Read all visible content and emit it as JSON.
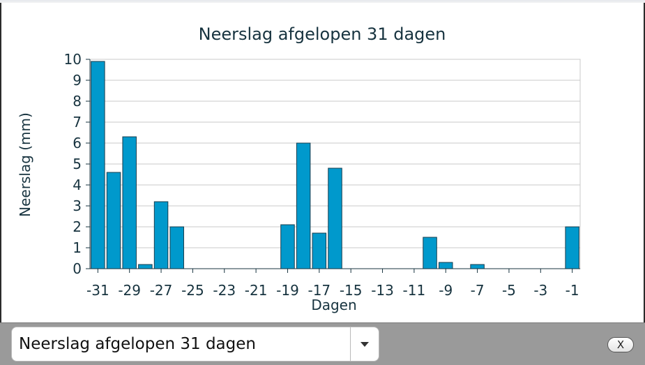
{
  "chart_data": {
    "type": "bar",
    "title": "Neerslag afgelopen 31 dagen",
    "xlabel": "Dagen",
    "ylabel": "Neerslag (mm)",
    "ylim": [
      0,
      10
    ],
    "yticks": [
      "0",
      "1",
      "2",
      "3",
      "4",
      "5",
      "6",
      "7",
      "8",
      "9",
      "10"
    ],
    "categories": [
      -31,
      -30,
      -29,
      -28,
      -27,
      -26,
      -25,
      -24,
      -23,
      -22,
      -21,
      -20,
      -19,
      -18,
      -17,
      -16,
      -15,
      -14,
      -13,
      -12,
      -11,
      -10,
      -9,
      -8,
      -7,
      -6,
      -5,
      -4,
      -3,
      -2,
      -1
    ],
    "xtick_labels": [
      "-31",
      "-29",
      "-27",
      "-25",
      "-23",
      "-21",
      "-19",
      "-17",
      "-15",
      "-13",
      "-11",
      "-9",
      "-7",
      "-5",
      "-3",
      "-1"
    ],
    "values": [
      9.9,
      4.6,
      6.3,
      0.2,
      3.2,
      2.0,
      0,
      0,
      0,
      0,
      0,
      0,
      2.1,
      6.0,
      1.7,
      4.8,
      0,
      0,
      0,
      0,
      0,
      1.5,
      0.3,
      0,
      0.2,
      0,
      0,
      0,
      0,
      0,
      2.0
    ],
    "grid": true,
    "bar_color": "#0099cc",
    "bar_edge_color": "#1a3d4d",
    "grid_color": "#c8c8c8"
  },
  "selector": {
    "selected": "Neerslag afgelopen 31 dagen"
  },
  "close_button": {
    "label": "X"
  }
}
